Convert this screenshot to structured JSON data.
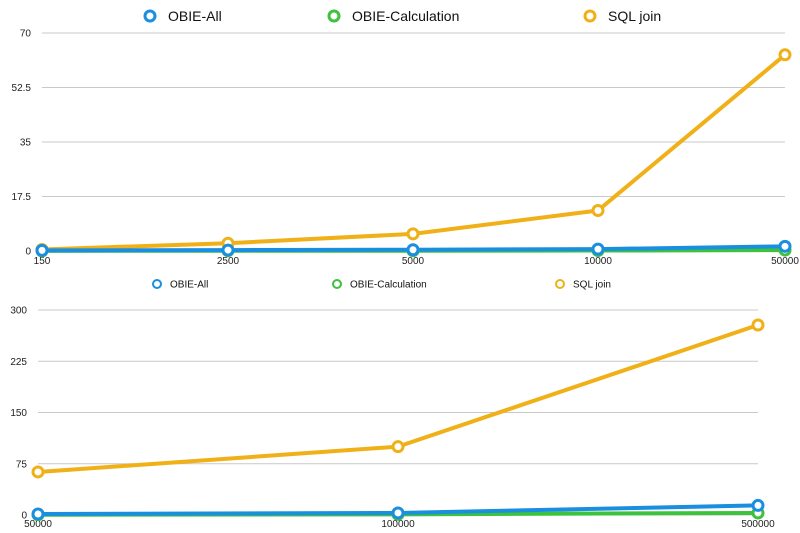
{
  "chart_data": [
    {
      "type": "line",
      "title": "",
      "xlabel": "",
      "ylabel": "",
      "categories": [
        "150",
        "2500",
        "5000",
        "10000",
        "50000"
      ],
      "ylim": [
        0,
        70
      ],
      "y_ticks": [
        "0",
        "17.5",
        "35",
        "52.5",
        "70"
      ],
      "grid": "horizontal",
      "legend_position": "top",
      "series": [
        {
          "name": "OBIE-All",
          "color": "#1a8fe0",
          "values": [
            0.2,
            0.3,
            0.4,
            0.6,
            1.5
          ]
        },
        {
          "name": "OBIE-Calculation",
          "color": "#3cc23c",
          "values": [
            0.05,
            0.1,
            0.1,
            0.15,
            0.3
          ]
        },
        {
          "name": "SQL join",
          "color": "#f0b018",
          "values": [
            0.5,
            2.5,
            5.5,
            13,
            63
          ]
        }
      ]
    },
    {
      "type": "line",
      "title": "",
      "xlabel": "",
      "ylabel": "",
      "categories": [
        "50000",
        "100000",
        "500000"
      ],
      "ylim": [
        0,
        300
      ],
      "y_ticks": [
        "0",
        "75",
        "150",
        "225",
        "300"
      ],
      "grid": "horizontal",
      "legend_position": "top",
      "series": [
        {
          "name": "OBIE-All",
          "color": "#1a8fe0",
          "values": [
            1.5,
            3,
            14
          ]
        },
        {
          "name": "OBIE-Calculation",
          "color": "#3cc23c",
          "values": [
            0.3,
            1,
            3
          ]
        },
        {
          "name": "SQL join",
          "color": "#f0b018",
          "values": [
            63,
            100,
            278
          ]
        }
      ]
    }
  ]
}
